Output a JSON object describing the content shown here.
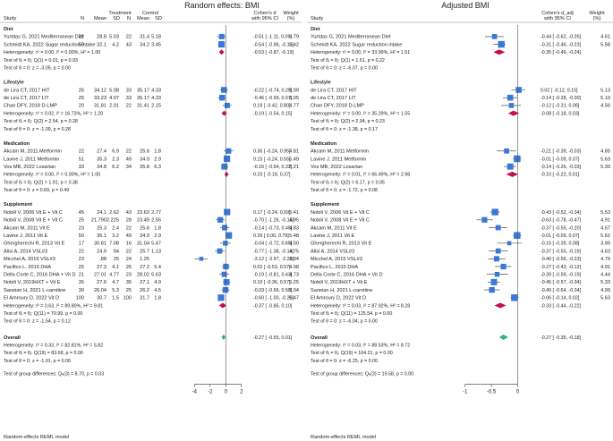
{
  "chart_data": {
    "type": "forest",
    "x_axis_ticks": [
      -4,
      -2,
      0,
      2
    ],
    "x_axis_ticks_adj": [
      -1,
      -0.5,
      0
    ],
    "overall_bar_color": "#35b378",
    "subgroup_diamond_color": "#c0114e",
    "square_color": "#3a78d8",
    "footer": "Random-effects REML model",
    "panels": [
      {
        "title": "Random effects: BMI",
        "header": {
          "study": "Study",
          "treatment": "Treatment",
          "control": "Control",
          "n": "N",
          "mean": "Mean",
          "sd": "SD",
          "effect": "Cohen's d",
          "effect2": "with 95% CI",
          "weight": "Weight",
          "weight2": "(%)"
        }
      },
      {
        "title": "Adjusted BMI",
        "header": {
          "study": "Study",
          "effect": "Cohen's d_adj",
          "effect2": "with 95% CI",
          "weight": "Weight",
          "weight2": "(%)"
        }
      }
    ],
    "groups": [
      {
        "name": "Diet",
        "studies": [
          {
            "study": "Yurtdas G, 2021 Mediterranean Diet",
            "tn": "22",
            "tm": "28.8",
            "tsd": "5.03",
            "cn": "22",
            "cm": "31.4",
            "csd": "5.18",
            "d": -0.51,
            "lo": -1.11,
            "hi": 0.09,
            "ci": "-0.51 [ -1.11,  0.09]",
            "w": "4.79",
            "da": -0.44,
            "loa": -0.62,
            "hia": -0.26,
            "cia": "-0.44 [ -0.62, -0.26]",
            "wa": "4.61"
          },
          {
            "study": "Schmidt KA, 2022 Sugar reduction intake",
            "tn": "50",
            "tm": "32.1",
            "tsd": "4.2",
            "cn": "43",
            "cm": "34.2",
            "csd": "3.45",
            "d": -0.54,
            "lo": -0.96,
            "hi": -0.13,
            "ci": "-0.54 [ -0.96, -0.13]",
            "w": "5.42",
            "da": -0.31,
            "loa": -0.46,
            "hia": -0.23,
            "cia": "-0.31 [ -0.46, -0.23]",
            "wa": "5.58"
          }
        ],
        "summary": {
          "d": -0.53,
          "lo": -0.87,
          "hi": -0.19,
          "ci": "-0.53 [ -0.87, -0.19]",
          "da": -0.35,
          "loa": -0.46,
          "hia": -0.24,
          "cia": "-0.35 [ -0.46, -0.24]"
        },
        "het": "Heterogeneity: τ² = 0.00, I² = 0.00%, H² = 1.00",
        "het_adj": "Heterogeneity: τ² = 0.00, I² = 33.99%, H² = 1.51",
        "theta": "Test of θᵢ = θⱼ: Q(1) = 0.01, p = 0.93",
        "theta_adj": "Test of θᵢ = θⱼ: Q(1) = 1.51, p = 0.22",
        "zero": "Test of θ = 0: z = -3.05, p = 0.00",
        "zero_adj": "Test of θ = 0: z = -6.07, p = 0.00"
      },
      {
        "name": "Lifestyle",
        "studies": [
          {
            "study": "de Lira CT, 2017 HIT",
            "tn": "26",
            "tm": "34.12",
            "tsd": "5.08",
            "cn": "33",
            "cm": "35.17",
            "csd": "4.33",
            "d": -0.22,
            "lo": -0.74,
            "hi": 0.29,
            "ci": "-0.22 [ -0.74,  0.29]",
            "w": "5.09",
            "da": 0.02,
            "loa": -0.12,
            "hia": 0.15,
            "cia": " 0.02 [ -0.12,  0.15]",
            "wa": "5.13"
          },
          {
            "study": "de Lira CT, 2017 LIT",
            "tn": "25",
            "tm": "33.23",
            "tsd": "4.07",
            "cn": "33",
            "cm": "35.17",
            "csd": "4.33",
            "d": -0.46,
            "lo": -0.99,
            "hi": 0.07,
            "ci": "-0.46 [ -0.99,  0.07]",
            "w": "5.05",
            "da": -0.14,
            "loa": -0.28,
            "hia": 0.0,
            "cia": "-0.14 [ -0.28, -0.00]",
            "wa": "5.10"
          },
          {
            "study": "Chan DFY, 2018 D-LMP",
            "tn": "20",
            "tm": "31.81",
            "tsd": "2.01",
            "cn": "22",
            "cm": "31.41",
            "csd": "2.15",
            "d": 0.19,
            "lo": -0.42,
            "hi": 0.8,
            "ci": " 0.19 [ -0.42,  0.80]",
            "w": "4.77",
            "da": -0.12,
            "loa": -0.31,
            "hia": 0.06,
            "cia": "-0.12 [ -0.31,  0.06]",
            "wa": "4.56"
          }
        ],
        "summary": {
          "d": -0.19,
          "lo": -0.54,
          "hi": 0.15,
          "ci": "-0.19 [ -0.54,  0.15]",
          "da": -0.08,
          "loa": -0.18,
          "hia": 0.03,
          "cia": "-0.08 [ -0.18,  0.03]"
        },
        "het": "Heterogeneity: τ² = 0.02, I² = 16.73%, H² = 1.20",
        "het_adj": "Heterogeneity: τ² = 0.00, I² = 35.29%, H² = 1.55",
        "theta": "Test of θᵢ = θⱼ: Q(2) = 2.54, p = 0.28",
        "theta_adj": "Test of θᵢ = θⱼ: Q(2) = 2.94, p = 0.23",
        "zero": "Test of θ = 0: z = -1.09, p = 0.28",
        "zero_adj": "Test of θ = 0: z = -1.38, p = 0.17"
      },
      {
        "name": "Medication",
        "studies": [
          {
            "study": "Akcam M, 2011 Metformin",
            "tn": "22",
            "tm": "27.4",
            "tsd": "6.9",
            "cn": "22",
            "cm": "25.6",
            "csd": "1.8",
            "d": 0.36,
            "lo": -0.24,
            "hi": 0.95,
            "ci": " 0.36 [ -0.24,  0.95]",
            "w": "4.81",
            "da": -0.21,
            "loa": -0.39,
            "hia": -0.03,
            "cia": "-0.21 [ -0.39, -0.03]",
            "wa": "4.65"
          },
          {
            "study": "Lavine J, 2011 Metformin",
            "tn": "51",
            "tm": "35.3",
            "tsd": "2.3",
            "cn": "49",
            "cm": "34.9",
            "csd": "2.9",
            "d": 0.15,
            "lo": -0.24,
            "hi": 0.55,
            "ci": " 0.15 [ -0.24,  0.55]",
            "w": "5.49",
            "da": -0.01,
            "loa": -0.09,
            "hia": 0.07,
            "cia": "-0.01 [ -0.09,  0.07]",
            "wa": "5.63"
          },
          {
            "study": "Vos MB, 2022 Losartan",
            "tn": "33",
            "tm": "34.8",
            "tsd": "6.2",
            "cn": "34",
            "cm": "35.8",
            "csd": "6.3",
            "d": -0.16,
            "lo": -0.64,
            "hi": 0.32,
            "ci": "-0.16 [ -0.64,  0.32]",
            "w": "5.21",
            "da": -0.14,
            "loa": -0.26,
            "hia": -0.03,
            "cia": "-0.14 [ -0.26, -0.03]",
            "wa": "5.30"
          }
        ],
        "summary": {
          "d": 0.1,
          "lo": -0.18,
          "hi": 0.37,
          "ci": " 0.10 [ -0.18,  0.37]",
          "da": -0.1,
          "loa": -0.22,
          "hia": 0.01,
          "cia": "-0.10 [ -0.22,  0.01]"
        },
        "het": "Heterogeneity: τ² = 0.00, I² = 0.00%, H² = 1.00",
        "het_adj": "Heterogeneity: τ² = 0.01, I² = 66.49%, H² = 2.98",
        "theta": "Test of θᵢ = θⱼ: Q(2) = 1.91, p = 0.38",
        "theta_adj": "Test of θᵢ = θⱼ: Q(2) = 6.17, p = 0.05",
        "zero": "Test of θ = 0: z = 0.69, p = 0.49",
        "zero_adj": "Test of θ = 0: z = -1.72, p = 0.08"
      },
      {
        "name": "Supplement",
        "studies": [
          {
            "study": "Nobili V, 2006 Vit E + Vit C",
            "tn": "45",
            "tm": "24.1",
            "tsd": "2.62",
            "cn": "43",
            "cm": "23.63",
            "csd": "2.77",
            "d": 0.17,
            "lo": -0.24,
            "hi": 0.59,
            "ci": " 0.17 [ -0.24,  0.59]",
            "w": "5.41",
            "da": -0.43,
            "loa": -0.52,
            "hia": -0.34,
            "cia": "-0.43 [ -0.52, -0.34]",
            "wa": "5.53"
          },
          {
            "study": "Nobili V, 2008 Vit E + Vit C",
            "tn": "25",
            "tm": "21.790",
            "tsd": "2.225",
            "cn": "28",
            "cm": "23.49",
            "csd": "2.55",
            "d": -0.7,
            "lo": -1.26,
            "hi": -0.15,
            "ci": "-0.70 [ -1.26, -0.15]",
            "w": "4.95",
            "da": -0.63,
            "loa": -0.78,
            "hia": -0.47,
            "cia": "-0.63 [ -0.78, -0.47]",
            "wa": "4.91"
          },
          {
            "study": "Akcam M, 2011 Vit E",
            "tn": "23",
            "tm": "25.3",
            "tsd": "2.4",
            "cn": "22",
            "cm": "25.6",
            "csd": "1.8",
            "d": -0.14,
            "lo": -0.73,
            "hi": 0.45,
            "ci": "-0.14 [ -0.73,  0.45]",
            "w": "4.83",
            "da": -0.37,
            "loa": -0.55,
            "hia": -0.2,
            "cia": "-0.37 [ -0.55, -0.20]",
            "wa": "4.67"
          },
          {
            "study": "Lavine J, 2011 Vit E",
            "tn": "50",
            "tm": "36.1",
            "tsd": "3.2",
            "cn": "49",
            "cm": "34.9",
            "csd": "2.9",
            "d": 0.39,
            "lo": 0.0,
            "hi": 0.79,
            "ci": " 0.39 [  0.00,  0.79]",
            "w": "5.48",
            "da": -0.01,
            "loa": -0.09,
            "hia": 0.07,
            "cia": "-0.01 [ -0.09,  0.07]",
            "wa": "5.62"
          },
          {
            "study": "Ghergherechi R, 2013 Vit E",
            "tn": "17",
            "tm": "30.81",
            "tsd": "7.08",
            "cn": "16",
            "cm": "31.04",
            "csd": "5.47",
            "d": -0.04,
            "lo": -0.72,
            "hi": 0.65,
            "ci": "-0.04 [ -0.72,  0.65]",
            "w": "4.50",
            "da": -0.16,
            "loa": -0.39,
            "hia": 0.08,
            "cia": "-0.16 [ -0.39,  0.08]",
            "wa": "3.99"
          },
          {
            "study": "Alisi A, 2014 VSL#3",
            "tn": "22",
            "tm": "24.9",
            "tsd": "94",
            "cn": "22",
            "cm": "25.7",
            "csd": "1.13",
            "d": -0.77,
            "lo": -1.38,
            "hi": -0.16,
            "ci": "-0.77 [ -1.38, -0.16]",
            "w": "4.75",
            "da": -0.37,
            "loa": -0.55,
            "hia": -0.19,
            "cia": "-0.37 [ -0.55, -0.19]",
            "wa": "4.63"
          },
          {
            "study": "Micchel A, 2015 VSL#3",
            "tn": "23",
            "tm": ".88",
            "tsd": "25",
            "cn": "24",
            "cm": "1.25",
            "csd": "",
            "d": -3.12,
            "lo": -3.97,
            "hi": -2.28,
            "ci": "-3.12 [ -3.97, -2.28]",
            "w": "3.94",
            "da": -0.4,
            "loa": -0.56,
            "hia": -0.23,
            "cia": "-0.40 [ -0.56, -0.23]",
            "wa": "4.79"
          },
          {
            "study": "Pacifico L, 2015 DHA",
            "tn": "25",
            "tm": "27.3",
            "tsd": "4.1",
            "cn": "26",
            "cm": "27.2",
            "csd": "5.4",
            "d": 0.02,
            "lo": -0.53,
            "hi": 0.57,
            "ci": " 0.02 [ -0.53,  0.57]",
            "w": "4.98",
            "da": -0.27,
            "loa": -0.43,
            "hia": -0.12,
            "cia": "-0.27 [ -0.43, -0.12]",
            "wa": "4.91"
          },
          {
            "study": "Della Corte C, 2016 DHA + Vit D",
            "tn": "21",
            "tm": "27.01",
            "tsd": "4.77",
            "cn": "23",
            "cm": "28.02",
            "csd": "5.63",
            "d": -0.19,
            "lo": -0.81,
            "hi": 0.43,
            "ci": "-0.19 [ -0.81,  0.43]",
            "w": "4.73",
            "da": -0.39,
            "loa": -0.59,
            "hia": -0.19,
            "cia": "-0.39 [ -0.59, -0.19]",
            "wa": "4.44"
          },
          {
            "study": "Nobili V, 2019HXT + Vit E",
            "tn": "35",
            "tm": "27.6",
            "tsd": "4.7",
            "cn": "35",
            "cm": "27.1",
            "csd": "4.9",
            "d": 0.1,
            "lo": -0.36,
            "hi": 0.57,
            "ci": " 0.10 [ -0.36,  0.57]",
            "w": "5.25",
            "da": -0.45,
            "loa": -0.57,
            "hia": -0.34,
            "cia": "-0.45 [ -0.57, -0.34]",
            "wa": "5.33"
          },
          {
            "study": "Saneian H, 2021 L-carnitine",
            "tn": "30",
            "tm": "26.04",
            "tsd": "5.3",
            "cn": "25",
            "cm": "26.2",
            "csd": "4.5",
            "d": -0.03,
            "lo": -0.56,
            "hi": 0.5,
            "ci": "-0.03 [ -0.56,  0.50]",
            "w": "5.04",
            "da": -0.49,
            "loa": -0.64,
            "hia": -0.34,
            "cia": "-0.49 [ -0.64, -0.34]",
            "wa": "4.99"
          },
          {
            "study": "El Amroury D, 2022 Vit D",
            "tn": "100",
            "tm": "30.7",
            "tsd": "1.5",
            "cn": "100",
            "cm": "31.7",
            "csd": "1.8",
            "d": -0.6,
            "lo": -1.0,
            "hi": -0.2,
            "ci": "-0.60 [ -1.00, -0.20]",
            "w": "5.47",
            "da": -0.06,
            "loa": -0.14,
            "hia": 0.02,
            "cia": "-0.06 [ -0.14,  0.02]",
            "wa": "5.63"
          }
        ],
        "summary": {
          "d": -0.37,
          "lo": -0.85,
          "hi": 0.1,
          "ci": "-0.37 [ -0.85,  0.10]",
          "da": -0.33,
          "loa": -0.44,
          "hia": -0.22,
          "cia": "-0.33 [ -0.44, -0.22]"
        },
        "het": "Heterogeneity: τ² = 0.63, I² = 89.80%, H² = 9.81",
        "het_adj": "Heterogeneity: τ² = 0.03, I² = 87.92%, H² = 8.28",
        "theta": "Test of θᵢ = θⱼ: Q(11) = 70.99, p = 0.00",
        "theta_adj": "Test of θᵢ = θⱼ: Q(11) = 125.54, p = 0.00",
        "zero": "Test of θ = 0: z = -1.54, p = 0.12",
        "zero_adj": "Test of θ = 0: z = -6.04, p = 0.00"
      }
    ],
    "overall": {
      "name": "Overall",
      "d": -0.27,
      "lo": -0.55,
      "hi": 0.01,
      "ci": "-0.27 [ -0.55,  0.01]",
      "da": -0.27,
      "loa": -0.35,
      "hia": -0.18,
      "cia": "-0.27 [ -0.35, -0.18]",
      "het": "Heterogeneity: τ² = 0.33, I² = 82.81%, H² = 5.82",
      "het_adj": "Heterogeneity: τ² = 0.03, I² = 88.53%, H² = 8.72",
      "theta": "Test of θᵢ = θⱼ: Q(19) = 83.68, p = 0.00",
      "theta_adj": "Test of θᵢ = θⱼ: Q(19) = 164.21, p = 0.00",
      "zero": "Test of θ = 0: z = -1.91, p = 0.06",
      "zero_adj": "Test of θ = 0: z = -6.25, p = 0.00",
      "group_diff": "Test of group differences: Qₕ(3) = 8.70, p = 0.03",
      "group_diff_adj": "Test of group differences: Qₕ(3) = 19.58, p = 0.00"
    }
  }
}
